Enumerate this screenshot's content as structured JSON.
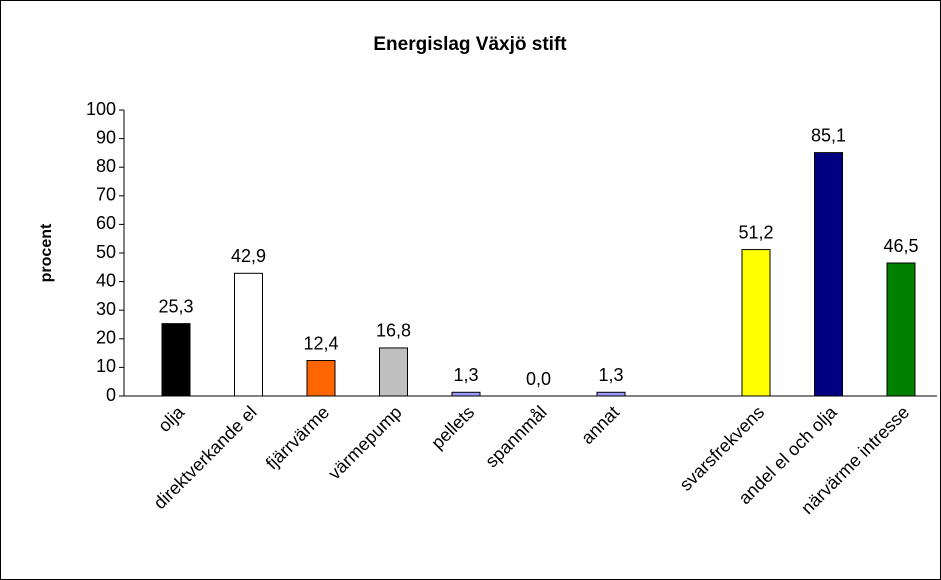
{
  "chart_data": {
    "type": "bar",
    "title": "Energislag Växjö stift",
    "y_label": "procent",
    "categories": [
      "olja",
      "direktverkande el",
      "fjärrvärme",
      "värmepump",
      "pellets",
      "spannmål",
      "annat",
      null,
      "svarsfrekvens",
      "andel el och olja",
      "närvärme intresse"
    ],
    "values": [
      25.3,
      42.9,
      12.4,
      16.8,
      1.3,
      0.0,
      1.3,
      null,
      51.2,
      85.1,
      46.5
    ],
    "value_labels": [
      "25,3",
      "42,9",
      "12,4",
      "16,8",
      "1,3",
      "0,0",
      "1,3",
      null,
      "51,2",
      "85,1",
      "46,5"
    ],
    "colors": [
      "#000000",
      "#ffffff",
      "#ff6600",
      "#c0c0c0",
      "#9999ff",
      "#9999ff",
      "#9999ff",
      null,
      "#ffff00",
      "#000080",
      "#008000"
    ],
    "ylim": [
      0,
      100
    ],
    "yticks": [
      0,
      10,
      20,
      30,
      40,
      50,
      60,
      70,
      80,
      90,
      100
    ],
    "grid": false
  }
}
